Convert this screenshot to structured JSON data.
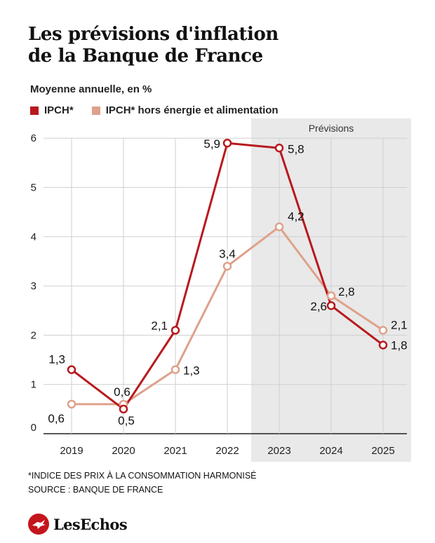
{
  "header": {
    "title_line1": "Les prévisions d'inflation",
    "title_line2": "de la Banque de France"
  },
  "chart_data": {
    "type": "line",
    "subtitle": "Moyenne annuelle, en %",
    "categories": [
      "2019",
      "2020",
      "2021",
      "2022",
      "2023",
      "2024",
      "2025"
    ],
    "y_ticks": [
      "0",
      "1",
      "2",
      "3",
      "4",
      "5",
      "6"
    ],
    "ylim": [
      0,
      6
    ],
    "forecast_label": "Prévisions",
    "forecast_start": "2023",
    "forecast_end": "2025",
    "grid": true,
    "series": [
      {
        "name": "IPCH*",
        "color": "#b8191e",
        "values": [
          1.3,
          0.5,
          2.1,
          5.9,
          5.8,
          2.6,
          1.8
        ],
        "labels": [
          "1,3",
          "0,5",
          "2,1",
          "5,9",
          "5,8",
          "2,6",
          "1,8"
        ]
      },
      {
        "name": "IPCH* hors énergie et alimentation",
        "color": "#dea18a",
        "values": [
          0.6,
          0.6,
          1.3,
          3.4,
          4.2,
          2.8,
          2.1
        ],
        "labels": [
          "0,6",
          "0,6",
          "1,3",
          "3,4",
          "4,2",
          "2,8",
          "2,1"
        ]
      }
    ]
  },
  "footer": {
    "note": "*INDICE DES PRIX À LA CONSOMMATION HARMONISÉ",
    "source": "SOURCE : BANQUE DE FRANCE",
    "brand": "LesEchos"
  }
}
